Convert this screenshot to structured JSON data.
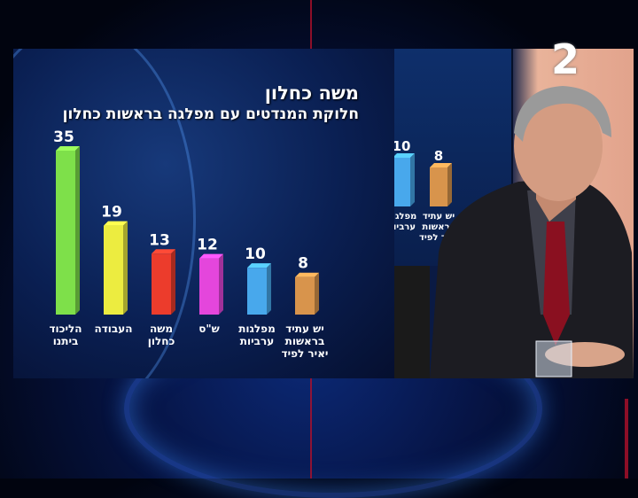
{
  "broadcast": {
    "channel_logo": "2"
  },
  "chart_data": {
    "type": "bar",
    "title": "משה כחלון",
    "subtitle": "חלוקת המנדטים עם מפלגה בראשות כחלון",
    "categories": [
      [
        "הליכוד",
        "ביתנו"
      ],
      [
        "העבודה"
      ],
      [
        "משה",
        "כחלון"
      ],
      [
        "ש\"ס"
      ],
      [
        "מפלגות",
        "ערביות"
      ],
      [
        "יש עתיד",
        "בראשות",
        "יאיר לפיד"
      ]
    ],
    "values": [
      35,
      19,
      13,
      12,
      10,
      8
    ],
    "colors": [
      "#7ee04a",
      "#ecec40",
      "#ec3c2c",
      "#e446dc",
      "#48a8ec",
      "#d8944c"
    ],
    "ylim": [
      0,
      35
    ],
    "grid": false,
    "legend": "none",
    "xlabel": "",
    "ylabel": ""
  },
  "inset_chart": {
    "values": [
      10,
      8
    ],
    "colors": [
      "#48a8ec",
      "#d8944c"
    ],
    "labels": [
      [
        "מפלגות",
        "ערביות"
      ],
      [
        "יש עתיד",
        "בראשות",
        "יאיר לפיד"
      ]
    ]
  }
}
